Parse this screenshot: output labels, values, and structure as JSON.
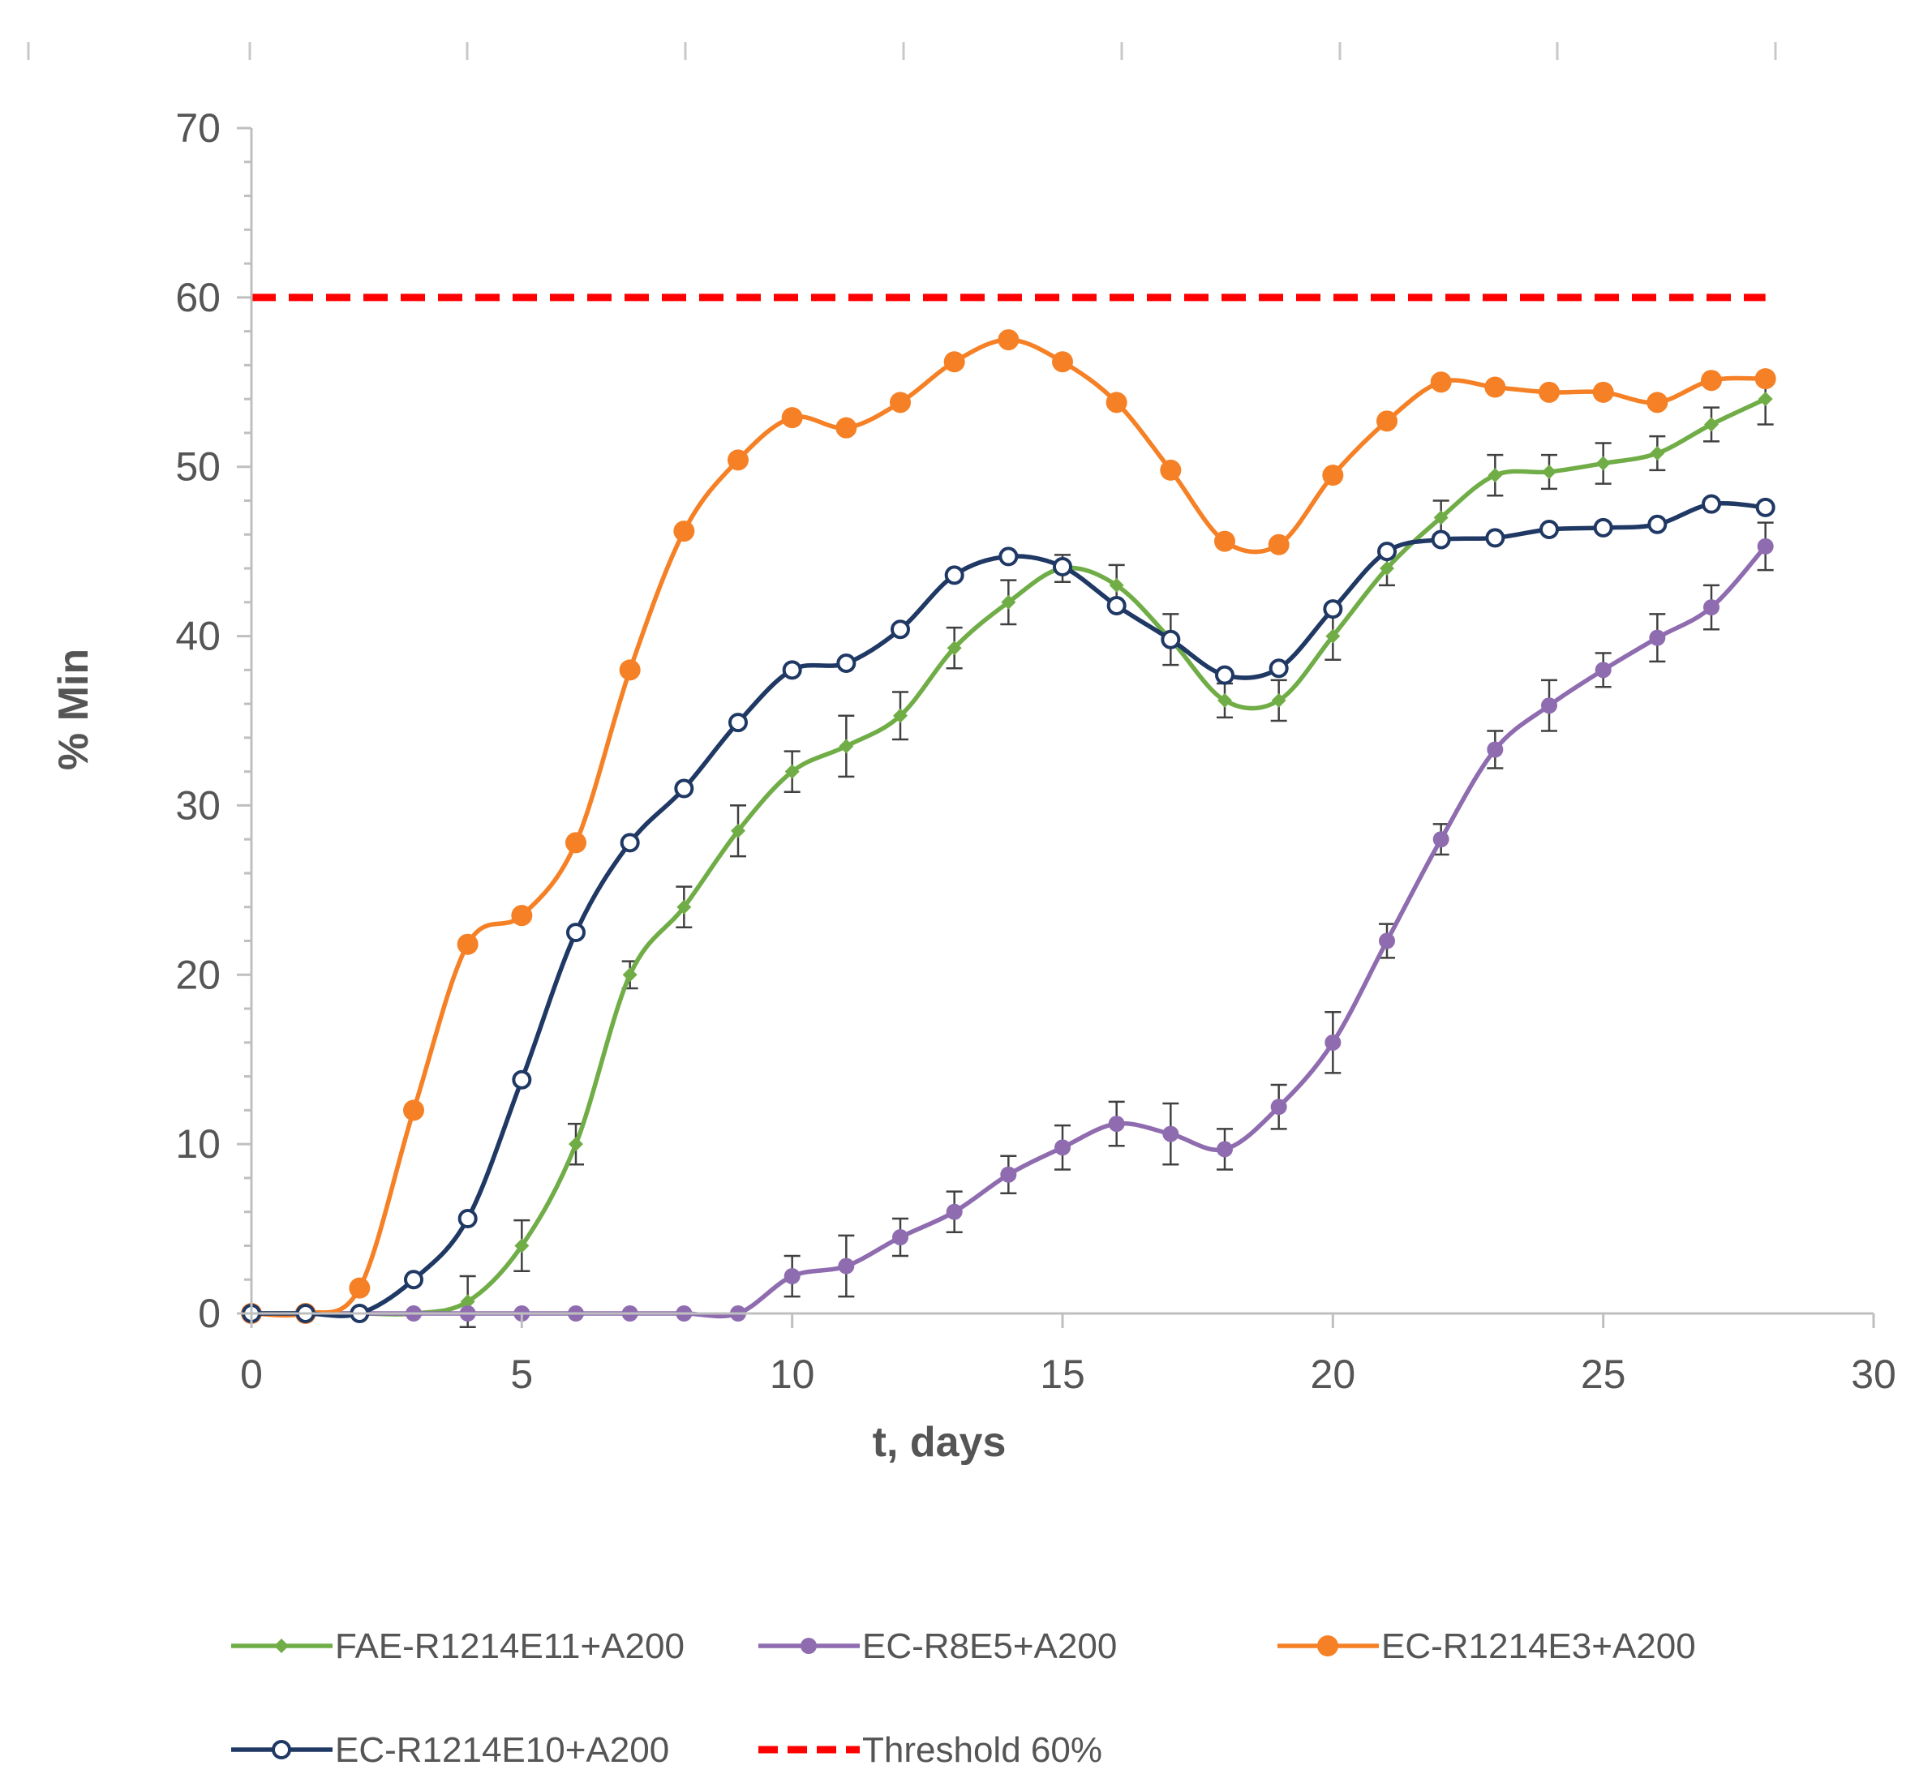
{
  "chart_data": {
    "type": "line",
    "xlabel": "t, days",
    "ylabel": "% Min",
    "xlim": [
      0,
      30
    ],
    "ylim": [
      0,
      70
    ],
    "x_ticks": [
      0,
      5,
      10,
      15,
      20,
      25,
      30
    ],
    "y_ticks": [
      0,
      10,
      20,
      30,
      40,
      50,
      60,
      70
    ],
    "grid": false,
    "legend_position": "bottom",
    "x": [
      0,
      1,
      2,
      3,
      4,
      5,
      6,
      7,
      8,
      9,
      10,
      11,
      12,
      13,
      14,
      15,
      16,
      17,
      18,
      19,
      20,
      21,
      22,
      23,
      24,
      25,
      26,
      27,
      28
    ],
    "series": [
      {
        "name": "FAE-R1214E11+A200",
        "color": "#70AD47",
        "marker": "diamond",
        "values": [
          0,
          0,
          0,
          0,
          0.7,
          4,
          10,
          20,
          24,
          28.5,
          32,
          33.5,
          35.3,
          39.3,
          42,
          44,
          43,
          39.8,
          36.2,
          36.2,
          40,
          44,
          47,
          49.5,
          49.7,
          50.2,
          50.8,
          52.5,
          54
        ],
        "errors": [
          0,
          0,
          0,
          0,
          1.5,
          1.5,
          1.2,
          0.8,
          1.2,
          1.5,
          1.2,
          1.8,
          1.4,
          1.2,
          1.3,
          0.8,
          1.2,
          1.5,
          1.0,
          1.2,
          1.4,
          1.0,
          1.0,
          1.2,
          1.0,
          1.2,
          1.0,
          1.0,
          1.5
        ]
      },
      {
        "name": "EC-R8E5+A200",
        "color": "#8E6CAF",
        "marker": "circle-filled",
        "values": [
          0,
          0,
          0,
          0,
          0,
          0,
          0,
          0,
          0,
          0,
          2.2,
          2.8,
          4.5,
          6,
          8.2,
          9.8,
          11.2,
          10.6,
          9.7,
          12.2,
          16,
          22,
          28,
          33.3,
          35.9,
          38,
          39.9,
          41.7,
          45.3
        ],
        "errors": [
          0,
          0,
          0,
          0,
          0,
          0,
          0,
          0,
          0,
          0,
          1.2,
          1.8,
          1.1,
          1.2,
          1.1,
          1.3,
          1.3,
          1.8,
          1.2,
          1.3,
          1.8,
          1.0,
          0.9,
          1.1,
          1.5,
          1.0,
          1.4,
          1.3,
          1.4
        ]
      },
      {
        "name": "EC-R1214E3+A200",
        "color": "#F58025",
        "marker": "circle-filled",
        "values": [
          0,
          0,
          1.5,
          12,
          21.8,
          23.5,
          27.8,
          38,
          46.2,
          50.4,
          52.9,
          52.3,
          53.8,
          56.2,
          57.5,
          56.2,
          53.8,
          49.8,
          45.6,
          45.4,
          49.5,
          52.7,
          55,
          54.7,
          54.4,
          54.4,
          53.8,
          55.1,
          55.2
        ]
      },
      {
        "name": "EC-R1214E10+A200",
        "color": "#1F3864",
        "marker": "circle-open",
        "values": [
          0,
          0,
          0,
          2,
          5.6,
          13.8,
          22.5,
          27.8,
          31,
          34.9,
          38,
          38.4,
          40.4,
          43.6,
          44.7,
          44.1,
          41.8,
          39.8,
          37.7,
          38.1,
          41.6,
          45,
          45.7,
          45.8,
          46.3,
          46.4,
          46.6,
          47.8,
          47.6
        ]
      }
    ],
    "threshold": {
      "name": "Threshold 60%",
      "y": 60,
      "x_range": [
        0,
        28
      ],
      "color": "#FF0000",
      "style": "dashed"
    }
  }
}
